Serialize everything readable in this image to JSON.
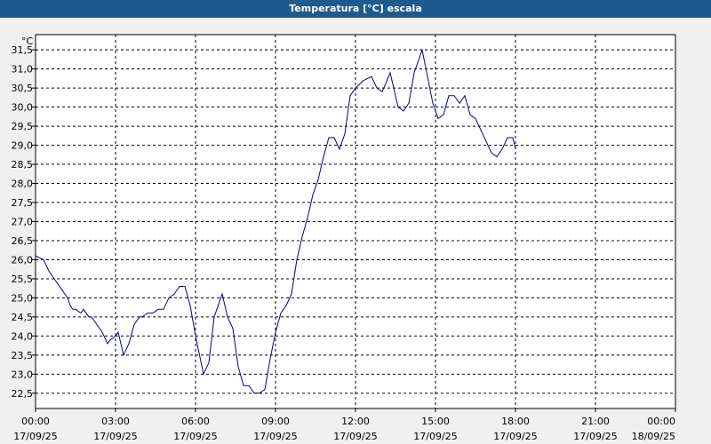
{
  "window": {
    "title": "Temperatura [°C] escala"
  },
  "chart_data": {
    "type": "line",
    "title": "Temperatura [°C] escala",
    "ylabel": "°C",
    "xlabel": "",
    "ylim": [
      22.1,
      31.9
    ],
    "xlim": [
      0,
      24
    ],
    "grid": true,
    "y_ticks": [
      "22,5",
      "23,0",
      "23,5",
      "24,0",
      "24,5",
      "25,0",
      "25,5",
      "26,0",
      "26,5",
      "27,0",
      "27,5",
      "28,0",
      "28,5",
      "29,0",
      "29,5",
      "30,0",
      "30,5",
      "31,0",
      "31,5"
    ],
    "x_ticks": [
      {
        "time": "00:00",
        "date": "17/09/25"
      },
      {
        "time": "03:00",
        "date": "17/09/25"
      },
      {
        "time": "06:00",
        "date": "17/09/25"
      },
      {
        "time": "09:00",
        "date": "17/09/25"
      },
      {
        "time": "12:00",
        "date": "17/09/25"
      },
      {
        "time": "15:00",
        "date": "17/09/25"
      },
      {
        "time": "18:00",
        "date": "17/09/25"
      },
      {
        "time": "21:00",
        "date": "17/09/25"
      },
      {
        "time": "00:00",
        "date": "18/09/25"
      }
    ],
    "series": [
      {
        "color": "#00008b",
        "x": [
          0.0,
          0.3,
          0.5,
          0.7,
          0.9,
          1.0,
          1.2,
          1.3,
          1.4,
          1.5,
          1.7,
          1.8,
          2.0,
          2.1,
          2.3,
          2.5,
          2.7,
          2.8,
          3.0,
          3.1,
          3.3,
          3.5,
          3.7,
          3.9,
          4.0,
          4.2,
          4.4,
          4.6,
          4.8,
          5.0,
          5.2,
          5.4,
          5.6,
          5.8,
          6.0,
          6.3,
          6.5,
          6.7,
          7.0,
          7.2,
          7.4,
          7.6,
          7.8,
          8.0,
          8.2,
          8.4,
          8.6,
          8.8,
          9.0,
          9.2,
          9.4,
          9.6,
          9.8,
          10.0,
          10.2,
          10.4,
          10.6,
          10.8,
          11.0,
          11.2,
          11.4,
          11.6,
          11.8,
          12.0,
          12.3,
          12.6,
          12.8,
          13.0,
          13.3,
          13.6,
          13.8,
          14.0,
          14.2,
          14.5,
          14.7,
          14.9,
          15.1,
          15.3,
          15.5,
          15.7,
          15.9,
          16.1,
          16.3,
          16.5,
          16.7,
          16.9,
          17.1,
          17.3,
          17.5,
          17.7,
          17.9,
          18.0
        ],
        "y": [
          26.1,
          26.0,
          25.7,
          25.5,
          25.3,
          25.2,
          25.0,
          24.8,
          24.7,
          24.7,
          24.6,
          24.7,
          24.5,
          24.5,
          24.3,
          24.1,
          23.8,
          23.9,
          24.0,
          24.1,
          23.5,
          23.8,
          24.3,
          24.5,
          24.5,
          24.6,
          24.6,
          24.7,
          24.7,
          25.0,
          25.1,
          25.3,
          25.3,
          24.8,
          24.0,
          23.0,
          23.3,
          24.5,
          25.1,
          24.5,
          24.2,
          23.2,
          22.7,
          22.7,
          22.5,
          22.5,
          22.6,
          23.4,
          24.1,
          24.6,
          24.8,
          25.1,
          26.0,
          26.6,
          27.1,
          27.7,
          28.1,
          28.7,
          29.2,
          29.2,
          28.9,
          29.3,
          30.3,
          30.5,
          30.7,
          30.8,
          30.5,
          30.4,
          30.9,
          30.0,
          29.9,
          30.1,
          30.9,
          31.5,
          30.8,
          30.1,
          29.7,
          29.8,
          30.3,
          30.3,
          30.1,
          30.3,
          29.8,
          29.7,
          29.4,
          29.1,
          28.8,
          28.7,
          28.9,
          29.2,
          29.2,
          28.9
        ]
      }
    ]
  }
}
